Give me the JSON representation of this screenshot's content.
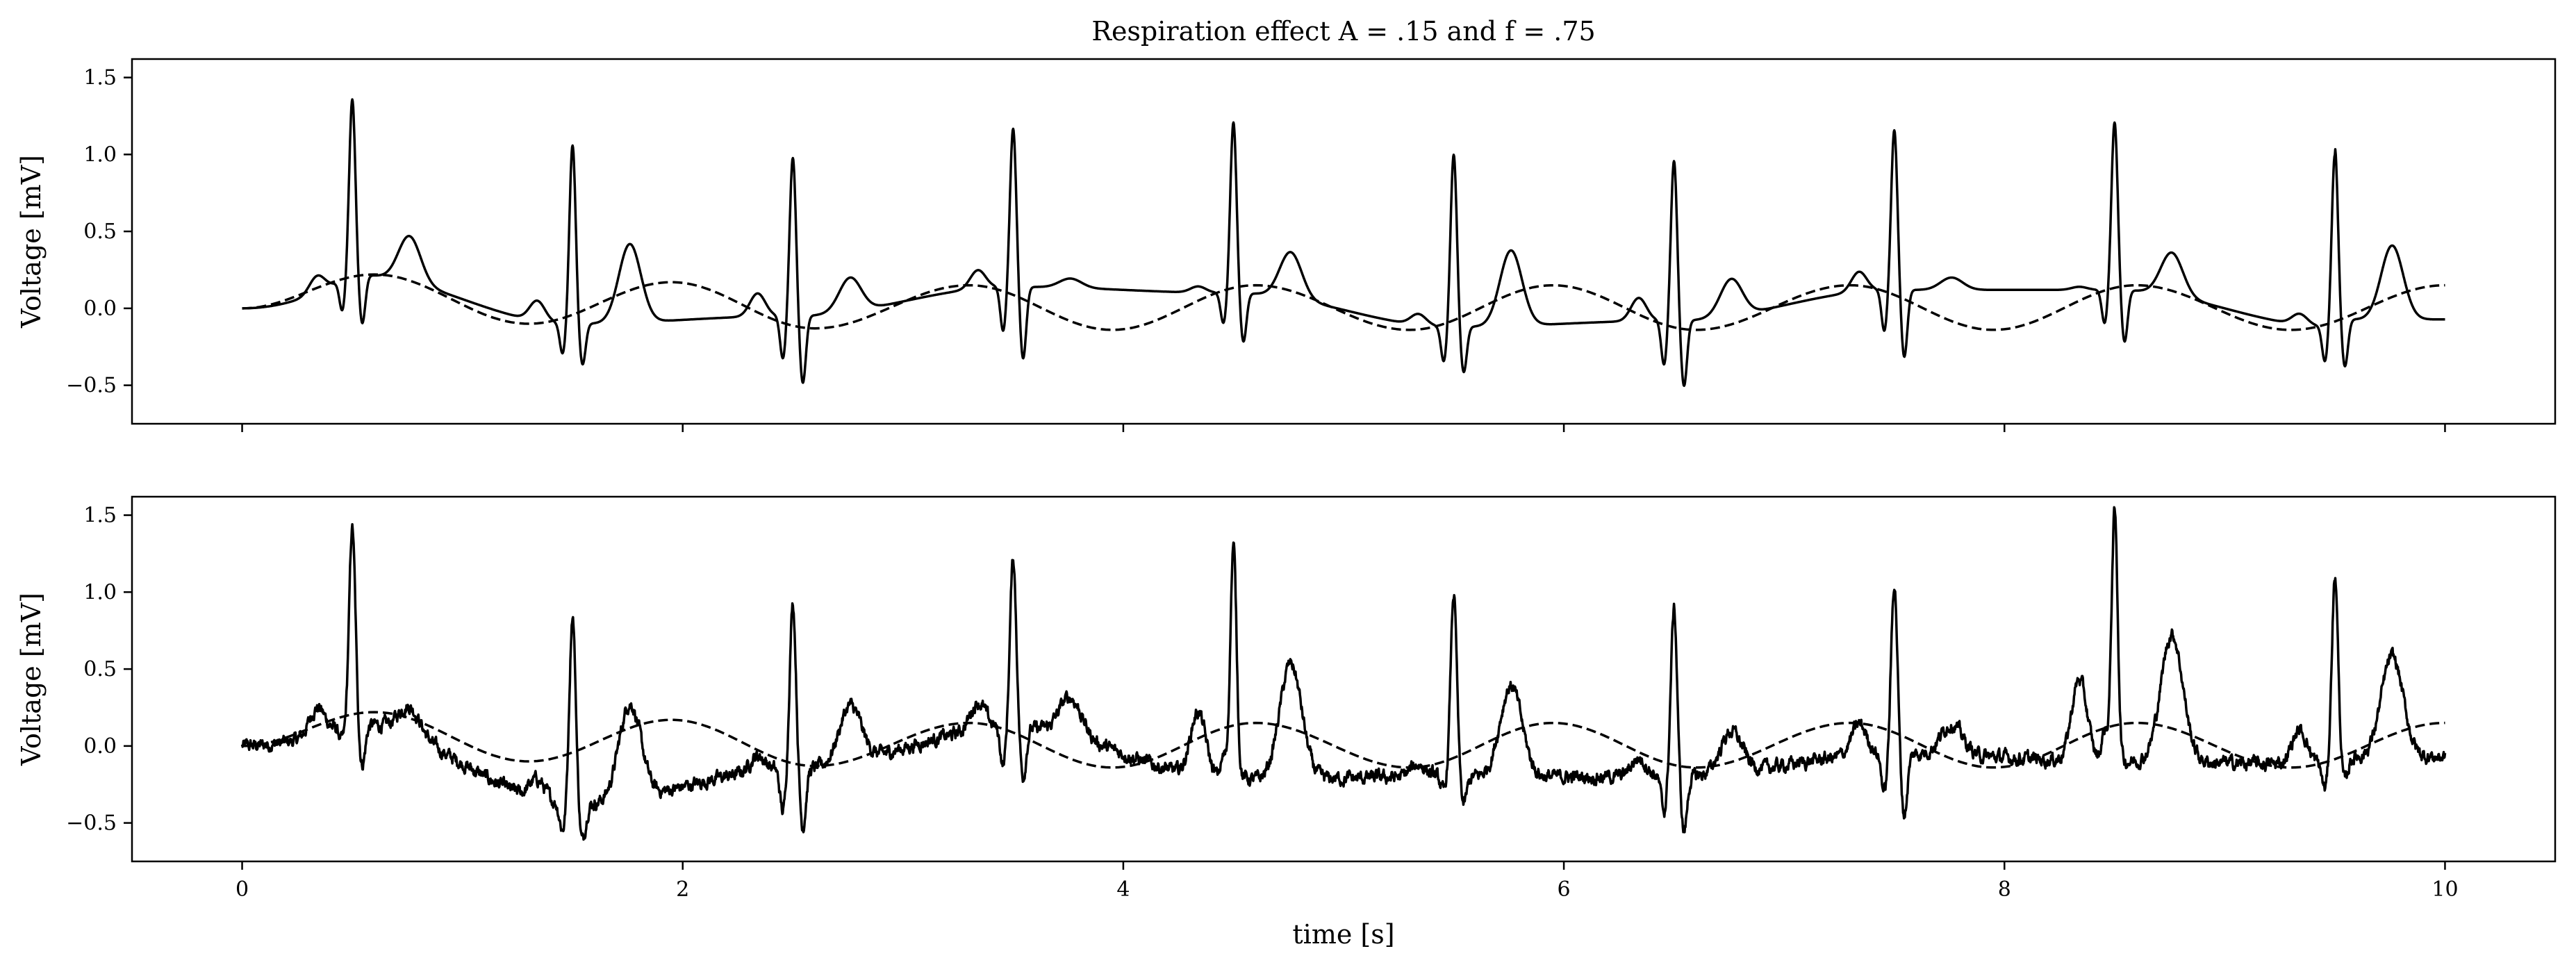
{
  "chart_data": [
    {
      "type": "line",
      "title": "Respiration effect A = .15 and f = .75",
      "ylabel": "Voltage [mV]",
      "xlabel": "",
      "xlim": [
        -0.5,
        10.5
      ],
      "ylim": [
        -0.75,
        1.62
      ],
      "x_ticks": [
        0,
        2,
        4,
        6,
        8,
        10
      ],
      "x_tick_labels_visible": false,
      "y_ticks": [
        -0.5,
        0.0,
        0.5,
        1.0,
        1.5
      ],
      "y_tick_labels": [
        "−0.5",
        "0.0",
        "0.5",
        "1.0",
        "1.5"
      ],
      "grid": false,
      "line_color": "#000000",
      "series": [
        {
          "style": "solid",
          "kind": "ecg",
          "noise": false,
          "beats": [
            {
              "t": 0.5,
              "r": 1.36,
              "p": 0.33,
              "q": 0.02,
              "s": -0.1,
              "tw": 0.52,
              "base": 0.22
            },
            {
              "t": 1.5,
              "r": 1.06,
              "p": 0.03,
              "q": -0.3,
              "s": -0.37,
              "tw": 0.41,
              "base": -0.1
            },
            {
              "t": 2.5,
              "r": 0.98,
              "p": 0.1,
              "q": -0.33,
              "s": -0.49,
              "tw": 0.17,
              "base": -0.05
            },
            {
              "t": 3.5,
              "r": 1.17,
              "p": 0.26,
              "q": -0.15,
              "s": -0.33,
              "tw": 0.2,
              "base": 0.14
            },
            {
              "t": 4.5,
              "r": 1.21,
              "p": 0.14,
              "q": -0.1,
              "s": -0.22,
              "tw": 0.4,
              "base": 0.1
            },
            {
              "t": 5.5,
              "r": 1.0,
              "p": -0.05,
              "q": -0.35,
              "s": -0.42,
              "tw": 0.37,
              "base": -0.12
            },
            {
              "t": 6.5,
              "r": 0.96,
              "p": 0.07,
              "q": -0.37,
              "s": -0.51,
              "tw": 0.16,
              "base": -0.08
            },
            {
              "t": 7.5,
              "r": 1.16,
              "p": 0.25,
              "q": -0.15,
              "s": -0.32,
              "tw": 0.2,
              "base": 0.12
            },
            {
              "t": 8.5,
              "r": 1.21,
              "p": 0.14,
              "q": -0.1,
              "s": -0.22,
              "tw": 0.4,
              "base": 0.12
            },
            {
              "t": 9.5,
              "r": 1.0,
              "p": -0.05,
              "q": -0.35,
              "s": -0.43,
              "tw": 0.36,
              "base": -0.12
            }
          ]
        },
        {
          "style": "dashed",
          "kind": "respiration",
          "values_x": [
            0,
            0.6,
            1.3,
            1.95,
            2.6,
            3.3,
            3.95,
            4.6,
            5.3,
            5.95,
            6.6,
            7.3,
            7.95,
            8.6,
            9.3,
            10.0
          ],
          "values_y": [
            0.0,
            0.22,
            -0.1,
            0.17,
            -0.13,
            0.15,
            -0.14,
            0.15,
            -0.14,
            0.15,
            -0.14,
            0.15,
            -0.14,
            0.15,
            -0.14,
            0.15
          ]
        }
      ]
    },
    {
      "type": "line",
      "title": "",
      "ylabel": "Voltage [mV]",
      "xlabel": "time [s]",
      "xlim": [
        -0.5,
        10.5
      ],
      "ylim": [
        -0.75,
        1.62
      ],
      "x_ticks": [
        0,
        2,
        4,
        6,
        8,
        10
      ],
      "x_tick_labels": [
        "0",
        "2",
        "4",
        "6",
        "8",
        "10"
      ],
      "y_ticks": [
        -0.5,
        0.0,
        0.5,
        1.0,
        1.5
      ],
      "y_tick_labels": [
        "−0.5",
        "0.0",
        "0.5",
        "1.0",
        "1.5"
      ],
      "grid": false,
      "line_color": "#000000",
      "series": [
        {
          "style": "solid",
          "kind": "ecg",
          "noise": true,
          "beats": [
            {
              "t": 0.5,
              "r": 1.42,
              "p": 0.33,
              "q": 0.06,
              "s": -0.12,
              "tw": 0.34,
              "base": 0.15
            },
            {
              "t": 1.5,
              "r": 0.85,
              "p": -0.25,
              "q": -0.55,
              "s": -0.62,
              "tw": 0.24,
              "base": -0.38
            },
            {
              "t": 2.5,
              "r": 0.93,
              "p": -0.05,
              "q": -0.43,
              "s": -0.53,
              "tw": 0.22,
              "base": -0.15
            },
            {
              "t": 3.5,
              "r": 1.22,
              "p": 0.3,
              "q": -0.12,
              "s": -0.2,
              "tw": 0.37,
              "base": 0.12
            },
            {
              "t": 4.5,
              "r": 1.31,
              "p": 0.2,
              "q": -0.08,
              "s": -0.2,
              "tw": 0.53,
              "base": -0.22
            },
            {
              "t": 5.5,
              "r": 0.99,
              "p": -0.12,
              "q": -0.3,
              "s": -0.38,
              "tw": 0.39,
              "base": -0.2
            },
            {
              "t": 6.5,
              "r": 0.89,
              "p": -0.08,
              "q": -0.43,
              "s": -0.56,
              "tw": 0.07,
              "base": -0.2
            },
            {
              "t": 7.5,
              "r": 1.06,
              "p": 0.15,
              "q": -0.3,
              "s": -0.45,
              "tw": 0.15,
              "base": -0.05
            },
            {
              "t": 8.5,
              "r": 1.52,
              "p": 0.43,
              "q": 0.1,
              "s": -0.1,
              "tw": 0.73,
              "base": -0.1
            },
            {
              "t": 9.5,
              "r": 1.08,
              "p": 0.1,
              "q": -0.28,
              "s": -0.28,
              "tw": 0.53,
              "base": -0.12
            }
          ]
        },
        {
          "style": "dashed",
          "kind": "respiration",
          "values_x": [
            0,
            0.6,
            1.3,
            1.95,
            2.6,
            3.3,
            3.95,
            4.6,
            5.3,
            5.95,
            6.6,
            7.3,
            7.95,
            8.6,
            9.3,
            10.0
          ],
          "values_y": [
            0.0,
            0.22,
            -0.1,
            0.17,
            -0.13,
            0.15,
            -0.14,
            0.15,
            -0.14,
            0.15,
            -0.14,
            0.15,
            -0.14,
            0.15,
            -0.14,
            0.15
          ]
        }
      ]
    }
  ]
}
